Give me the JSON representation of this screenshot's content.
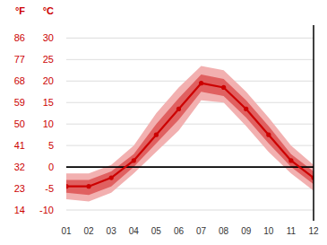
{
  "chart_data": {
    "type": "line",
    "categories": [
      "01",
      "02",
      "03",
      "04",
      "05",
      "06",
      "07",
      "08",
      "09",
      "10",
      "11",
      "12"
    ],
    "series": [
      {
        "type": "band",
        "color": "#f2b0b0",
        "low": [
          -7.5,
          -8.0,
          -6.0,
          -1.5,
          3.5,
          8.5,
          15.5,
          15.0,
          9.5,
          3.5,
          -1.5,
          -5.5
        ],
        "high": [
          -1.5,
          -1.5,
          0.5,
          5.0,
          12.5,
          18.5,
          23.5,
          22.5,
          17.5,
          11.5,
          5.0,
          0.5
        ]
      },
      {
        "type": "band",
        "color": "#e06060",
        "low": [
          -6.0,
          -6.5,
          -4.5,
          0.0,
          5.5,
          11.0,
          17.5,
          16.5,
          11.5,
          5.5,
          0.0,
          -4.0
        ],
        "high": [
          -3.0,
          -3.0,
          -1.0,
          3.0,
          10.0,
          16.0,
          21.5,
          20.5,
          15.5,
          9.5,
          3.0,
          -1.0
        ]
      },
      {
        "type": "line",
        "color": "#cc0000",
        "marker": "circle",
        "values": [
          -4.5,
          -4.5,
          -2.5,
          1.5,
          7.5,
          13.5,
          19.5,
          18.5,
          13.5,
          7.5,
          1.5,
          -2.5
        ]
      }
    ],
    "y_label": "°C",
    "y2_label": "°F",
    "ylim": [
      -12.5,
      33
    ],
    "yticks": [
      30,
      25,
      20,
      15,
      10,
      5,
      0,
      -5,
      -10
    ],
    "y2lim": [
      9.5,
      91.4
    ],
    "y2ticks": [
      86,
      77,
      68,
      59,
      50,
      41,
      32,
      23,
      14
    ],
    "reference_lines": [
      {
        "value": 0,
        "color": "#000000"
      }
    ],
    "grid": true
  }
}
